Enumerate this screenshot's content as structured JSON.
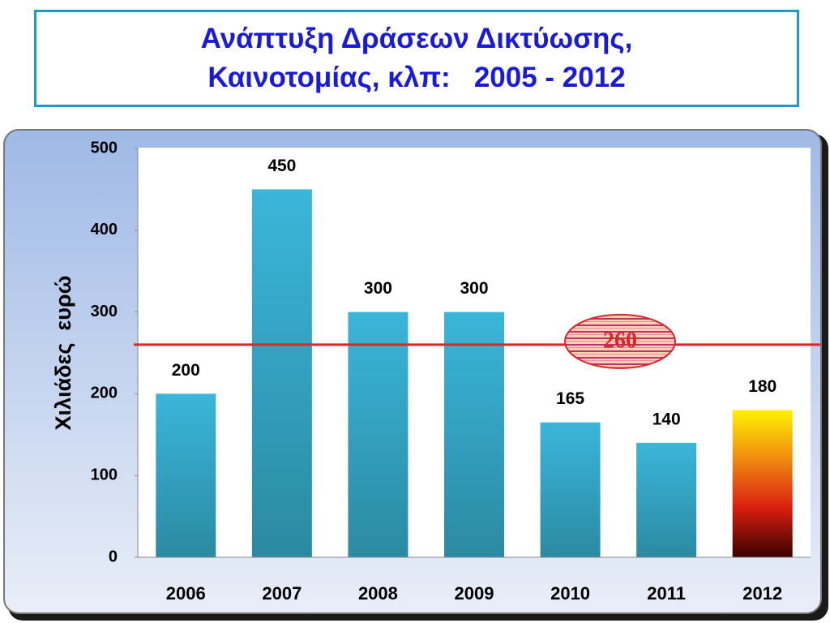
{
  "chart_data": {
    "type": "bar",
    "title": "Ανάπτυξη Δράσεων Δικτύωσης,\nΚαινοτομίας, κλπ:   2005 - 2012",
    "y_label": "Χιλιάδες  ευρώ",
    "categories": [
      "2006",
      "2007",
      "2008",
      "2009",
      "2010",
      "2011",
      "2012"
    ],
    "values": [
      200,
      450,
      300,
      300,
      165,
      140,
      180
    ],
    "bar_gradients": [
      [
        "#3ab6da",
        "#2b8aa2"
      ],
      [
        "#3ab6da",
        "#2b8aa2"
      ],
      [
        "#3ab6da",
        "#2b8aa2"
      ],
      [
        "#3ab6da",
        "#2b8aa2"
      ],
      [
        "#3ab6da",
        "#2b8aa2"
      ],
      [
        "#3ab6da",
        "#2b8aa2"
      ],
      [
        "#fff200",
        "#f08a10",
        "#d81e10",
        "#3a0000"
      ]
    ],
    "ylim": [
      0,
      500
    ],
    "yticks": [
      0,
      100,
      200,
      300,
      400,
      500
    ],
    "reference_line": 260,
    "reference_color": "#d9262b"
  }
}
